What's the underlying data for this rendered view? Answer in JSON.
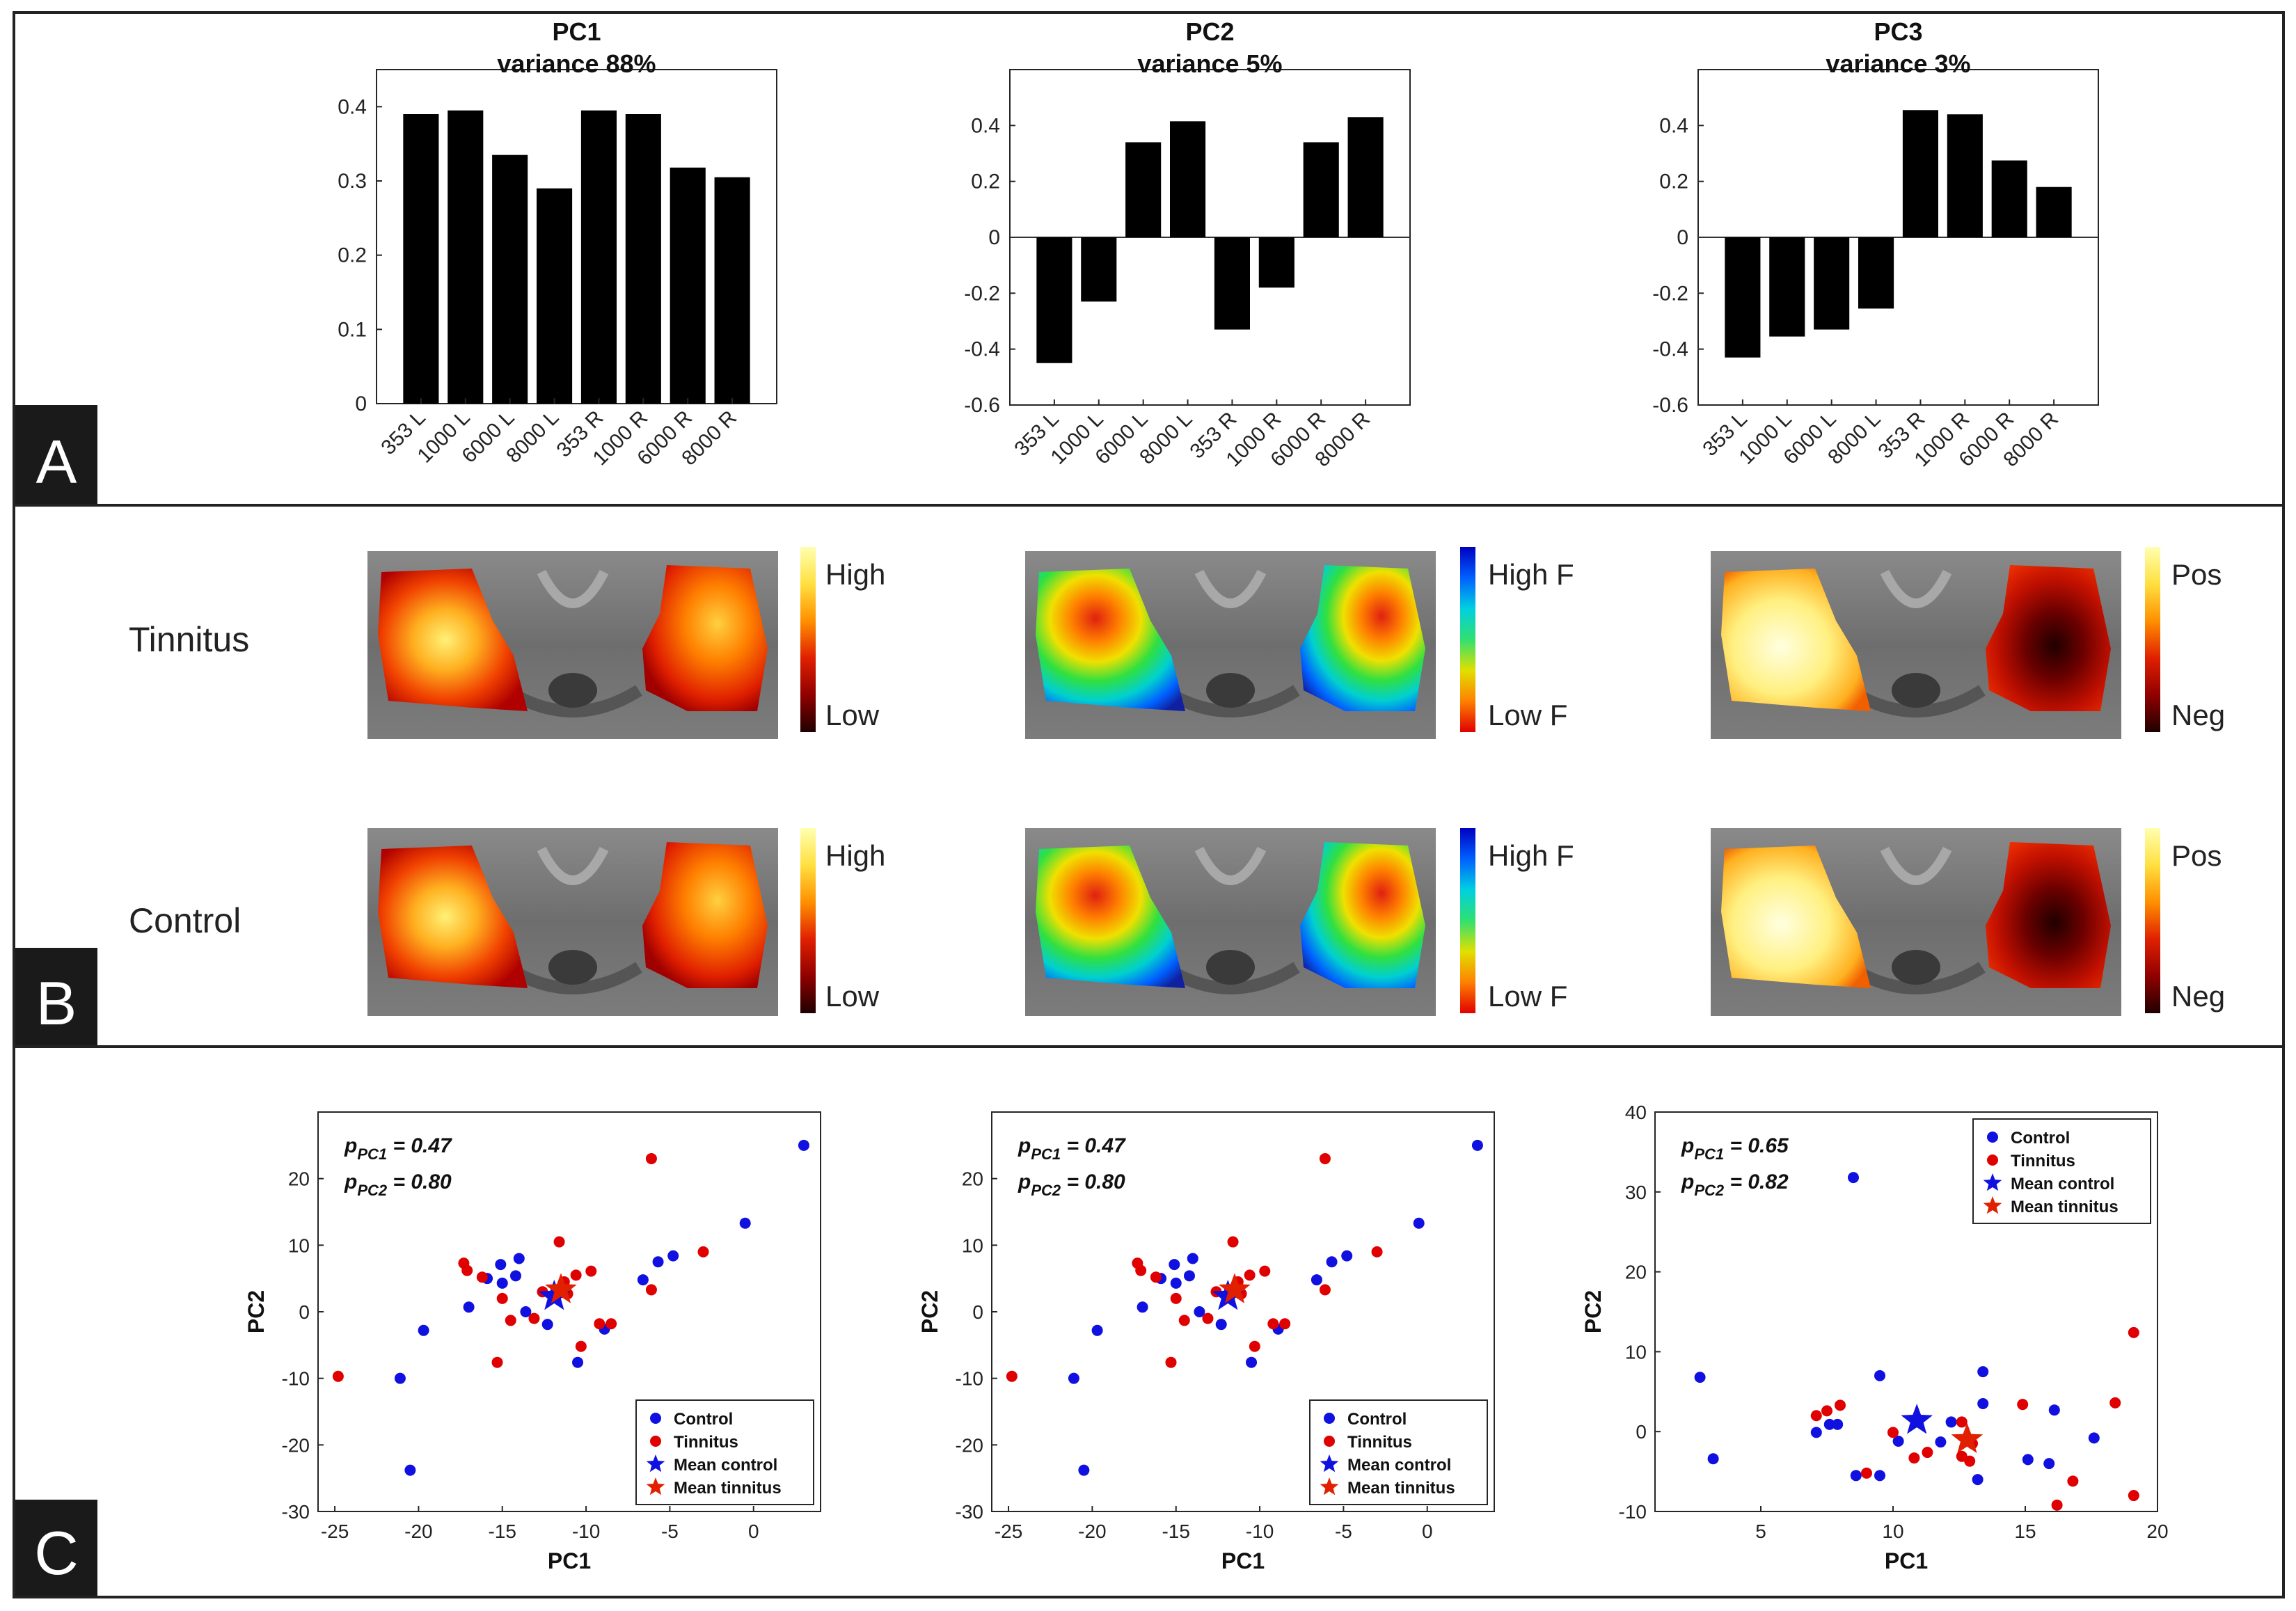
{
  "panel_labels": [
    "A",
    "B",
    "C"
  ],
  "row_labels": {
    "tinnitus": "Tinnitus",
    "control": "Control"
  },
  "colorbars": [
    {
      "top": "High",
      "bottom": "Low",
      "colors": [
        "#ffffb0",
        "#ffe040",
        "#ff9000",
        "#e02000",
        "#900000",
        "#200000"
      ]
    },
    {
      "top": "High F",
      "bottom": "Low F",
      "colors": [
        "#0000c0",
        "#0060ff",
        "#00d0e0",
        "#30e070",
        "#e0e000",
        "#ff8000",
        "#e00000"
      ]
    },
    {
      "top": "Pos",
      "bottom": "Neg",
      "colors": [
        "#ffffb0",
        "#ffe040",
        "#ff9000",
        "#e02000",
        "#900000",
        "#200000"
      ]
    }
  ],
  "chart_data": [
    {
      "type": "bar",
      "title": "PC1",
      "subtitle": "variance 88%",
      "categories": [
        "353 L",
        "1000 L",
        "6000 L",
        "8000 L",
        "353 R",
        "1000 R",
        "6000 R",
        "8000 R"
      ],
      "values": [
        0.39,
        0.395,
        0.335,
        0.29,
        0.395,
        0.39,
        0.318,
        0.305
      ],
      "ylim": [
        0,
        0.45
      ],
      "yticks": [
        "0",
        "0.1",
        "0.2",
        "0.3",
        "0.4"
      ],
      "ytick_values": [
        0,
        0.1,
        0.2,
        0.3,
        0.4
      ]
    },
    {
      "type": "bar",
      "title": "PC2",
      "subtitle": "variance 5%",
      "categories": [
        "353 L",
        "1000 L",
        "6000 L",
        "8000 L",
        "353 R",
        "1000 R",
        "6000 R",
        "8000 R"
      ],
      "values": [
        -0.45,
        -0.23,
        0.34,
        0.415,
        -0.33,
        -0.18,
        0.34,
        0.43
      ],
      "ylim": [
        -0.6,
        0.6
      ],
      "yticks": [
        "-0.6",
        "-0.4",
        "-0.2",
        "0",
        "0.2",
        "0.4"
      ],
      "ytick_values": [
        -0.6,
        -0.4,
        -0.2,
        0,
        0.2,
        0.4
      ]
    },
    {
      "type": "bar",
      "title": "PC3",
      "subtitle": "variance 3%",
      "categories": [
        "353 L",
        "1000 L",
        "6000 L",
        "8000 L",
        "353 R",
        "1000 R",
        "6000 R",
        "8000 R"
      ],
      "values": [
        -0.43,
        -0.355,
        -0.33,
        -0.255,
        0.455,
        0.44,
        0.275,
        0.18
      ],
      "ylim": [
        -0.6,
        0.6
      ],
      "yticks": [
        "-0.6",
        "-0.4",
        "-0.2",
        "0",
        "0.2",
        "0.4"
      ],
      "ytick_values": [
        -0.6,
        -0.4,
        -0.2,
        0,
        0.2,
        0.4
      ]
    },
    {
      "type": "scatter",
      "xlabel": "PC1",
      "ylabel": "PC2",
      "xlim": [
        -26,
        4
      ],
      "ylim": [
        -30,
        30
      ],
      "xticks": [
        "-25",
        "-20",
        "-15",
        "-10",
        "-5",
        "0"
      ],
      "xtick_values": [
        -25,
        -20,
        -15,
        -10,
        -5,
        0
      ],
      "yticks": [
        "-30",
        "-20",
        "-10",
        "0",
        "10",
        "20"
      ],
      "ytick_values": [
        -30,
        -20,
        -10,
        0,
        10,
        20
      ],
      "annotations": [
        {
          "name": "PC1",
          "value": "= 0.47"
        },
        {
          "name": "PC2",
          "value": "= 0.80"
        }
      ],
      "legend": "bottom-right",
      "series": [
        {
          "name": "Control",
          "color": "#1010e0",
          "points": [
            [
              3,
              25
            ],
            [
              -0.5,
              13.3
            ],
            [
              -4.8,
              8.4
            ],
            [
              -5.7,
              7.5
            ],
            [
              -6.6,
              4.8
            ],
            [
              -8.9,
              -2.6
            ],
            [
              -10.5,
              -7.6
            ],
            [
              -12.3,
              -1.9
            ],
            [
              -13.6,
              0
            ],
            [
              -14,
              8
            ],
            [
              -14.2,
              5.4
            ],
            [
              -15,
              4.3
            ],
            [
              -15.1,
              7.1
            ],
            [
              -15.9,
              5
            ],
            [
              -17,
              0.7
            ],
            [
              -19.7,
              -2.8
            ],
            [
              -21.1,
              -10
            ],
            [
              -20.5,
              -23.8
            ]
          ]
        },
        {
          "name": "Tinnitus",
          "color": "#e00000",
          "points": [
            [
              -6.1,
              23
            ],
            [
              -3,
              9
            ],
            [
              -6.1,
              3.3
            ],
            [
              -8.5,
              -1.8
            ],
            [
              -9.2,
              -1.8
            ],
            [
              -9.7,
              6.1
            ],
            [
              -10.3,
              -5.2
            ],
            [
              -11.1,
              2.7
            ],
            [
              -10.6,
              5.5
            ],
            [
              -11.6,
              10.5
            ],
            [
              -12.6,
              3
            ],
            [
              -13.1,
              -1
            ],
            [
              -14.5,
              -1.3
            ],
            [
              -15,
              2
            ],
            [
              -15.3,
              -7.6
            ],
            [
              -16.2,
              5.2
            ],
            [
              -17.3,
              7.3
            ],
            [
              -17.1,
              6.2
            ],
            [
              -24.8,
              -9.7
            ],
            [
              -11.3,
              4.5
            ]
          ]
        },
        {
          "name": "Mean control",
          "color": "#1010e0",
          "marker": "star",
          "points": [
            [
              -11.9,
              2.3
            ]
          ]
        },
        {
          "name": "Mean tinnitus",
          "color": "#e02000",
          "marker": "star",
          "points": [
            [
              -11.5,
              3.3
            ]
          ]
        }
      ]
    },
    {
      "type": "scatter",
      "xlabel": "PC1",
      "ylabel": "PC2",
      "xlim": [
        -26,
        4
      ],
      "ylim": [
        -30,
        30
      ],
      "xticks": [
        "-25",
        "-20",
        "-15",
        "-10",
        "-5",
        "0"
      ],
      "xtick_values": [
        -25,
        -20,
        -15,
        -10,
        -5,
        0
      ],
      "yticks": [
        "-30",
        "-20",
        "-10",
        "0",
        "10",
        "20"
      ],
      "ytick_values": [
        -30,
        -20,
        -10,
        0,
        10,
        20
      ],
      "annotations": [
        {
          "name": "PC1",
          "value": "= 0.47"
        },
        {
          "name": "PC2",
          "value": "= 0.80"
        }
      ],
      "legend": "bottom-right",
      "series": [
        {
          "name": "Control",
          "color": "#1010e0",
          "points": [
            [
              3,
              25
            ],
            [
              -0.5,
              13.3
            ],
            [
              -4.8,
              8.4
            ],
            [
              -5.7,
              7.5
            ],
            [
              -6.6,
              4.8
            ],
            [
              -8.9,
              -2.6
            ],
            [
              -10.5,
              -7.6
            ],
            [
              -12.3,
              -1.9
            ],
            [
              -13.6,
              0
            ],
            [
              -14,
              8
            ],
            [
              -14.2,
              5.4
            ],
            [
              -15,
              4.3
            ],
            [
              -15.1,
              7.1
            ],
            [
              -15.9,
              5
            ],
            [
              -17,
              0.7
            ],
            [
              -19.7,
              -2.8
            ],
            [
              -21.1,
              -10
            ],
            [
              -20.5,
              -23.8
            ]
          ]
        },
        {
          "name": "Tinnitus",
          "color": "#e00000",
          "points": [
            [
              -6.1,
              23
            ],
            [
              -3,
              9
            ],
            [
              -6.1,
              3.3
            ],
            [
              -8.5,
              -1.8
            ],
            [
              -9.2,
              -1.8
            ],
            [
              -9.7,
              6.1
            ],
            [
              -10.3,
              -5.2
            ],
            [
              -11.1,
              2.7
            ],
            [
              -10.6,
              5.5
            ],
            [
              -11.6,
              10.5
            ],
            [
              -12.6,
              3
            ],
            [
              -13.1,
              -1
            ],
            [
              -14.5,
              -1.3
            ],
            [
              -15,
              2
            ],
            [
              -15.3,
              -7.6
            ],
            [
              -16.2,
              5.2
            ],
            [
              -17.3,
              7.3
            ],
            [
              -17.1,
              6.2
            ],
            [
              -24.8,
              -9.7
            ],
            [
              -11.3,
              4.5
            ]
          ]
        },
        {
          "name": "Mean control",
          "color": "#1010e0",
          "marker": "star",
          "points": [
            [
              -11.9,
              2.3
            ]
          ]
        },
        {
          "name": "Mean tinnitus",
          "color": "#e02000",
          "marker": "star",
          "points": [
            [
              -11.5,
              3.3
            ]
          ]
        }
      ]
    },
    {
      "type": "scatter",
      "xlabel": "PC1",
      "ylabel": "PC2",
      "xlim": [
        1,
        20
      ],
      "ylim": [
        -10,
        40
      ],
      "xticks": [
        "5",
        "10",
        "15",
        "20"
      ],
      "xtick_values": [
        5,
        10,
        15,
        20
      ],
      "yticks": [
        "-10",
        "0",
        "10",
        "20",
        "30",
        "40"
      ],
      "ytick_values": [
        -10,
        0,
        10,
        20,
        30,
        40
      ],
      "annotations": [
        {
          "name": "PC1",
          "value": "= 0.65"
        },
        {
          "name": "PC2",
          "value": "= 0.82"
        }
      ],
      "legend": "top-right",
      "series": [
        {
          "name": "Control",
          "color": "#1010e0",
          "points": [
            [
              8.5,
              31.8
            ],
            [
              2.7,
              6.8
            ],
            [
              3.2,
              -3.4
            ],
            [
              7.1,
              -0.1
            ],
            [
              7.6,
              0.9
            ],
            [
              7.9,
              0.9
            ],
            [
              8.6,
              -5.5
            ],
            [
              9.5,
              -5.5
            ],
            [
              9.5,
              7
            ],
            [
              10.2,
              -1.2
            ],
            [
              11.8,
              -1.3
            ],
            [
              12.2,
              1.2
            ],
            [
              13.2,
              -6
            ],
            [
              13.4,
              7.5
            ],
            [
              13.4,
              3.5
            ],
            [
              15.1,
              -3.5
            ],
            [
              15.9,
              -4
            ],
            [
              16.1,
              2.7
            ],
            [
              17.6,
              -0.8
            ]
          ]
        },
        {
          "name": "Tinnitus",
          "color": "#e00000",
          "points": [
            [
              7.1,
              2
            ],
            [
              7.5,
              2.6
            ],
            [
              8,
              3.3
            ],
            [
              9,
              -5.2
            ],
            [
              10,
              -0.1
            ],
            [
              10.8,
              -3.3
            ],
            [
              11.3,
              -2.6
            ],
            [
              12.6,
              1.2
            ],
            [
              12.6,
              -3.1
            ],
            [
              12.9,
              -3.7
            ],
            [
              13,
              -1.5
            ],
            [
              14.9,
              3.4
            ],
            [
              16.2,
              -9.2
            ],
            [
              16.8,
              -6.2
            ],
            [
              18.4,
              3.6
            ],
            [
              19.1,
              12.4
            ],
            [
              19.1,
              -8
            ]
          ]
        },
        {
          "name": "Mean control",
          "color": "#1010e0",
          "marker": "star",
          "points": [
            [
              10.9,
              1.4
            ]
          ]
        },
        {
          "name": "Mean tinnitus",
          "color": "#e02000",
          "marker": "star",
          "points": [
            [
              12.8,
              -1
            ]
          ]
        }
      ]
    }
  ]
}
